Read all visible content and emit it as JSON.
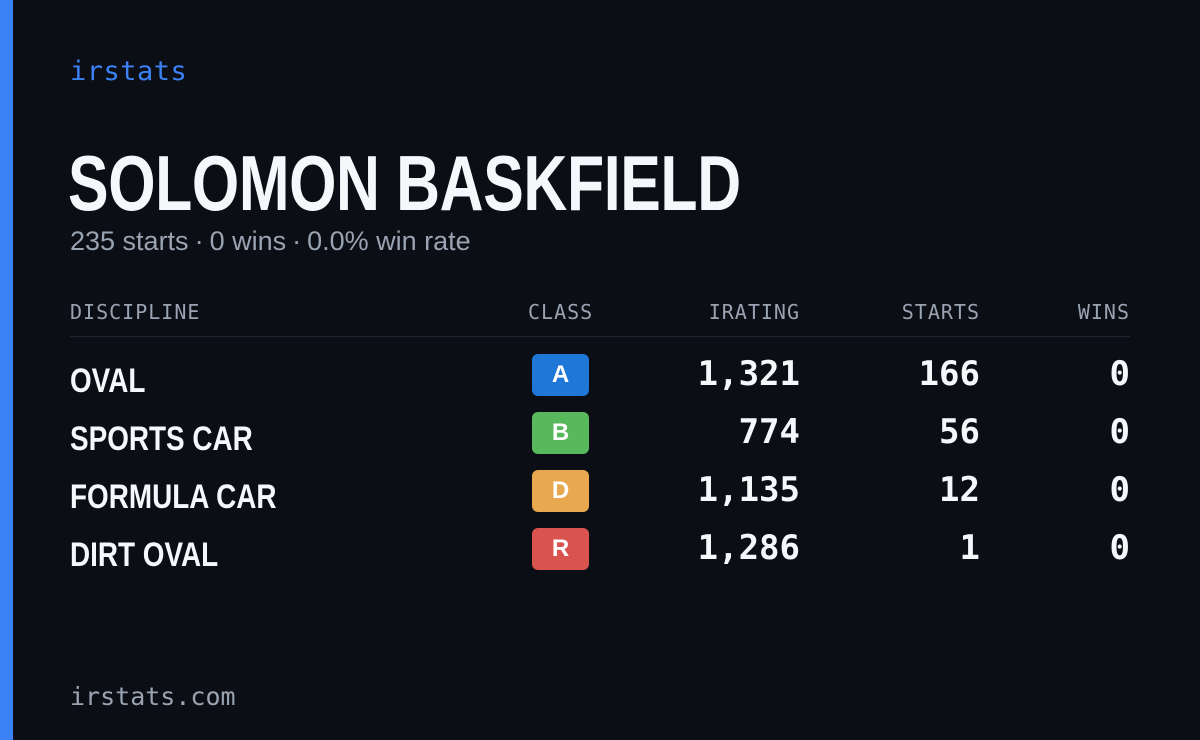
{
  "brand": "irstats",
  "driver": {
    "name": "SOLOMON BASKFIELD",
    "starts_text": "235 starts",
    "wins_text": "0 wins",
    "win_rate_text": "0.0% win rate",
    "separator": "·"
  },
  "table": {
    "headers": {
      "discipline": "DISCIPLINE",
      "class": "CLASS",
      "irating": "IRATING",
      "starts": "STARTS",
      "wins": "WINS"
    },
    "rows": [
      {
        "discipline": "OVAL",
        "class": "A",
        "class_color": "#1f78d8",
        "irating": "1,321",
        "starts": "166",
        "wins": "0"
      },
      {
        "discipline": "SPORTS CAR",
        "class": "B",
        "class_color": "#58b85c",
        "irating": "774",
        "starts": "56",
        "wins": "0"
      },
      {
        "discipline": "FORMULA CAR",
        "class": "D",
        "class_color": "#e8a850",
        "irating": "1,135",
        "starts": "12",
        "wins": "0"
      },
      {
        "discipline": "DIRT OVAL",
        "class": "R",
        "class_color": "#d9534f",
        "irating": "1,286",
        "starts": "1",
        "wins": "0"
      }
    ]
  },
  "footer": "irstats.com",
  "colors": {
    "accent": "#3b82f6",
    "background": "#0b0e15",
    "muted_text": "#9aa3b2"
  }
}
